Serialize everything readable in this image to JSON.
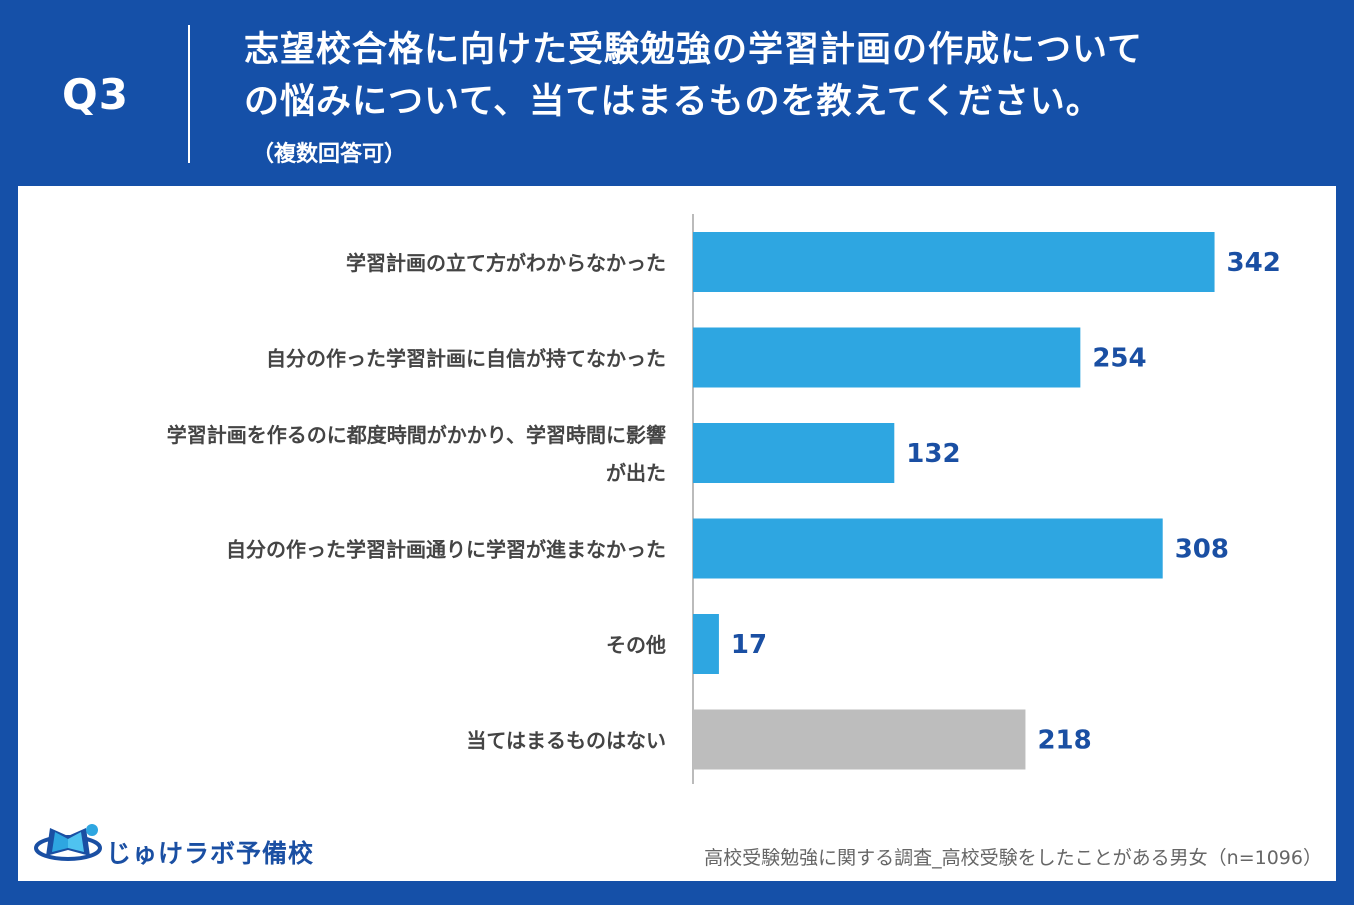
{
  "header": {
    "q_label": "Q3",
    "title_line1": "志望校合格に向けた受験勉強の学習計画の作成について",
    "title_line2": "の悩みについて、当てはまるものを教えてください。",
    "note": "（複数回答可）"
  },
  "footer": {
    "logo_text": "じゅけラボ予備校",
    "source_note": "高校受験勉強に関する調査_高校受験をしたことがある男女（n=1096）"
  },
  "colors": {
    "background": "#1550a8",
    "bar_primary": "#2ea6e1",
    "bar_none": "#bdbdbd",
    "value_text": "#1a4fa3",
    "label_text": "#444444"
  },
  "chart_data": {
    "type": "bar",
    "orientation": "horizontal",
    "categories": [
      [
        "学習計画の立て方がわからなかった"
      ],
      [
        "自分の作った学習計画に自信が持てなかった"
      ],
      [
        "学習計画を作るのに都度時間がかかり、学習時間に影響",
        "が出た"
      ],
      [
        "自分の作った学習計画通りに学習が進まなかった"
      ],
      [
        "その他"
      ],
      [
        "当てはまるものはない"
      ]
    ],
    "values": [
      342,
      254,
      132,
      308,
      17,
      218
    ],
    "bar_colors": [
      "#2ea6e1",
      "#2ea6e1",
      "#2ea6e1",
      "#2ea6e1",
      "#2ea6e1",
      "#bdbdbd"
    ],
    "xlim": [
      0,
      400
    ],
    "grid": false,
    "legend": "none"
  }
}
